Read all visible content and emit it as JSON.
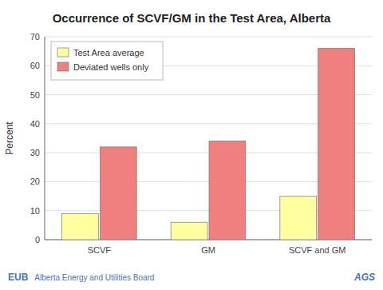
{
  "chart_data": {
    "type": "bar",
    "title": "Occurrence of SCVF/GM in the Test Area, Alberta",
    "annotations": [
      "EUB",
      "Alberta Energy and Utilities Board",
      "AGS"
    ],
    "ylabel": "Percent",
    "categories": [
      "SCVF",
      "GM",
      "SCVF and GM"
    ],
    "series": [
      {
        "name": "Test Area average",
        "color": "#ffffa0",
        "values": [
          9,
          6,
          15
        ]
      },
      {
        "name": "Deviated wells only",
        "color": "#f08080",
        "values": [
          32,
          34,
          66
        ]
      }
    ],
    "ylim": [
      0,
      70
    ],
    "yticks": [
      0,
      10,
      20,
      30,
      40,
      50,
      60,
      70
    ],
    "grid": true,
    "legend": "upper left"
  }
}
